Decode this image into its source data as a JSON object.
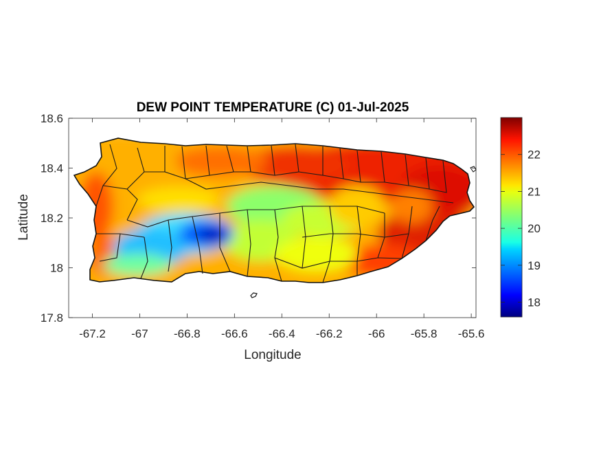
{
  "chart_data": {
    "type": "heatmap",
    "title": "DEW POINT TEMPERATURE (C) 01-Jul-2025",
    "xlabel": "Longitude",
    "ylabel": "Latitude",
    "xlim": [
      -67.3,
      -65.58
    ],
    "ylim": [
      17.8,
      18.6
    ],
    "x_ticks": [
      "-67.2",
      "-67",
      "-66.8",
      "-66.6",
      "-66.4",
      "-66.2",
      "-66",
      "-65.8",
      "-65.6"
    ],
    "x_tick_values": [
      -67.2,
      -67.0,
      -66.8,
      -66.6,
      -66.4,
      -66.2,
      -66.0,
      -65.8,
      -65.6
    ],
    "y_ticks": [
      "17.8",
      "18",
      "18.2",
      "18.4",
      "18.6"
    ],
    "y_tick_values": [
      17.8,
      18.0,
      18.2,
      18.4,
      18.6
    ],
    "colorbar": {
      "colormap": "jet",
      "range": [
        17.6,
        23.0
      ],
      "ticks": [
        "18",
        "19",
        "20",
        "21",
        "22"
      ],
      "tick_values": [
        18,
        19,
        20,
        21,
        22
      ]
    },
    "grid": false
  }
}
